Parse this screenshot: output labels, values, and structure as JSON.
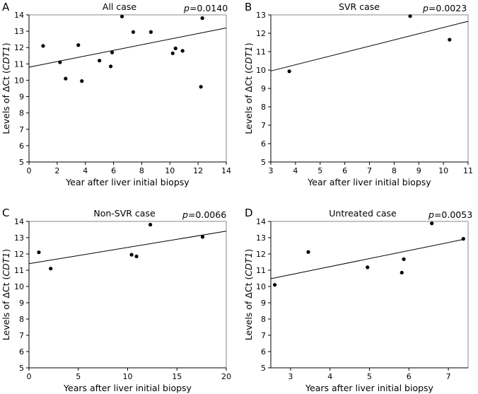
{
  "chart_data": [
    {
      "type": "scatter",
      "panel": "A",
      "title": "All case",
      "p_label": "p",
      "p_value": "=0.0140",
      "xlabel": "Year after liver initial biopsy",
      "ylabel_prefix": "Levels of ΔCt (",
      "ylabel_gene": "CDT1",
      "ylabel_suffix": ")",
      "xlim": [
        0,
        14
      ],
      "ylim": [
        5,
        14
      ],
      "xticks": [
        0,
        2,
        4,
        6,
        8,
        10,
        12,
        14
      ],
      "yticks": [
        5,
        6,
        7,
        8,
        9,
        10,
        11,
        12,
        13,
        14
      ],
      "points": [
        {
          "x": 1.0,
          "y": 12.1
        },
        {
          "x": 2.2,
          "y": 11.1
        },
        {
          "x": 2.6,
          "y": 10.1
        },
        {
          "x": 3.5,
          "y": 12.15
        },
        {
          "x": 3.75,
          "y": 9.95
        },
        {
          "x": 5.0,
          "y": 11.2
        },
        {
          "x": 5.8,
          "y": 10.85
        },
        {
          "x": 5.9,
          "y": 11.7
        },
        {
          "x": 6.6,
          "y": 13.9
        },
        {
          "x": 7.4,
          "y": 12.95
        },
        {
          "x": 8.65,
          "y": 12.95
        },
        {
          "x": 10.2,
          "y": 11.65
        },
        {
          "x": 10.4,
          "y": 11.95
        },
        {
          "x": 10.9,
          "y": 11.8
        },
        {
          "x": 12.2,
          "y": 9.6
        },
        {
          "x": 12.3,
          "y": 13.8
        }
      ],
      "trend": {
        "x": [
          0,
          14
        ],
        "y": [
          10.8,
          13.2
        ]
      }
    },
    {
      "type": "scatter",
      "panel": "B",
      "title": "SVR case",
      "p_label": "p",
      "p_value": "=0.0023",
      "xlabel": "Year after liver initial biopsy",
      "ylabel_prefix": "Levels of ΔCt (",
      "ylabel_gene": "CDT1",
      "ylabel_suffix": ")",
      "xlim": [
        3,
        11
      ],
      "ylim": [
        5,
        13
      ],
      "xticks": [
        3,
        4,
        5,
        6,
        7,
        8,
        9,
        10,
        11
      ],
      "yticks": [
        5,
        6,
        7,
        8,
        9,
        10,
        11,
        12,
        13
      ],
      "points": [
        {
          "x": 3.75,
          "y": 9.93
        },
        {
          "x": 8.65,
          "y": 12.93
        },
        {
          "x": 10.25,
          "y": 11.65
        }
      ],
      "trend": {
        "x": [
          3,
          11
        ],
        "y": [
          9.95,
          12.65
        ]
      }
    },
    {
      "type": "scatter",
      "panel": "C",
      "title": "Non-SVR case",
      "p_label": "p",
      "p_value": "=0.0066",
      "xlabel": "Years after liver initial biopsy",
      "ylabel_prefix": "Levels of ΔCt (",
      "ylabel_gene": "CDT1",
      "ylabel_suffix": ")",
      "xlim": [
        0,
        20
      ],
      "ylim": [
        5,
        14
      ],
      "xticks": [
        0,
        5,
        10,
        15,
        20
      ],
      "yticks": [
        5,
        6,
        7,
        8,
        9,
        10,
        11,
        12,
        13,
        14
      ],
      "points": [
        {
          "x": 1.0,
          "y": 12.1
        },
        {
          "x": 2.2,
          "y": 11.1
        },
        {
          "x": 10.4,
          "y": 11.95
        },
        {
          "x": 10.9,
          "y": 11.85
        },
        {
          "x": 12.3,
          "y": 13.8
        },
        {
          "x": 17.6,
          "y": 13.05
        }
      ],
      "trend": {
        "x": [
          0,
          20
        ],
        "y": [
          11.4,
          13.4
        ]
      }
    },
    {
      "type": "scatter",
      "panel": "D",
      "title": "Untreated case",
      "p_label": "p",
      "p_value": "=0.0053",
      "xlabel": "Years after liver initial biopsy",
      "ylabel_prefix": "Levels of ΔCt (",
      "ylabel_gene": "CDT1",
      "ylabel_suffix": ")",
      "xlim": [
        2.5,
        7.5
      ],
      "ylim": [
        5,
        14
      ],
      "xticks": [
        3,
        4,
        5,
        6,
        7
      ],
      "yticks": [
        5,
        6,
        7,
        8,
        9,
        10,
        11,
        12,
        13,
        14
      ],
      "points": [
        {
          "x": 2.6,
          "y": 10.1
        },
        {
          "x": 3.45,
          "y": 12.12
        },
        {
          "x": 4.95,
          "y": 11.18
        },
        {
          "x": 5.82,
          "y": 10.85
        },
        {
          "x": 5.87,
          "y": 11.68
        },
        {
          "x": 6.58,
          "y": 13.88
        },
        {
          "x": 7.38,
          "y": 12.93
        }
      ],
      "trend": {
        "x": [
          2.5,
          7.4
        ],
        "y": [
          10.48,
          12.9
        ]
      }
    }
  ]
}
